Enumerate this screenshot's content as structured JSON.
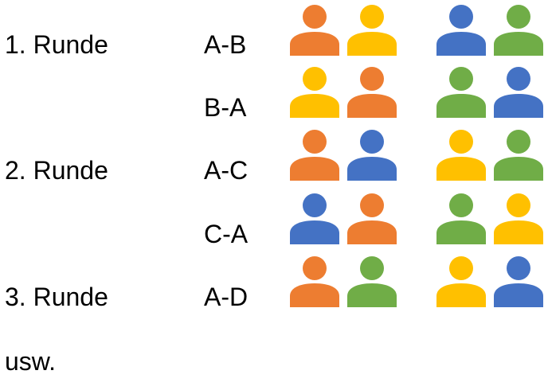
{
  "rounds": [
    {
      "label": "1. Runde"
    },
    {
      "label": "2. Runde"
    },
    {
      "label": "3. Runde"
    }
  ],
  "matches": [
    {
      "pair": "A-B",
      "left": [
        "orange",
        "yellow"
      ],
      "right": [
        "blue",
        "green"
      ]
    },
    {
      "pair": "B-A",
      "left": [
        "yellow",
        "orange"
      ],
      "right": [
        "green",
        "blue"
      ]
    },
    {
      "pair": "A-C",
      "left": [
        "orange",
        "blue"
      ],
      "right": [
        "yellow",
        "green"
      ]
    },
    {
      "pair": "C-A",
      "left": [
        "blue",
        "orange"
      ],
      "right": [
        "green",
        "yellow"
      ]
    },
    {
      "pair": "A-D",
      "left": [
        "orange",
        "green"
      ],
      "right": [
        "yellow",
        "blue"
      ]
    }
  ],
  "footer": {
    "text": "usw."
  },
  "colors": {
    "orange": "#ED7D31",
    "yellow": "#FFC000",
    "blue": "#4472C4",
    "green": "#70AD47"
  }
}
